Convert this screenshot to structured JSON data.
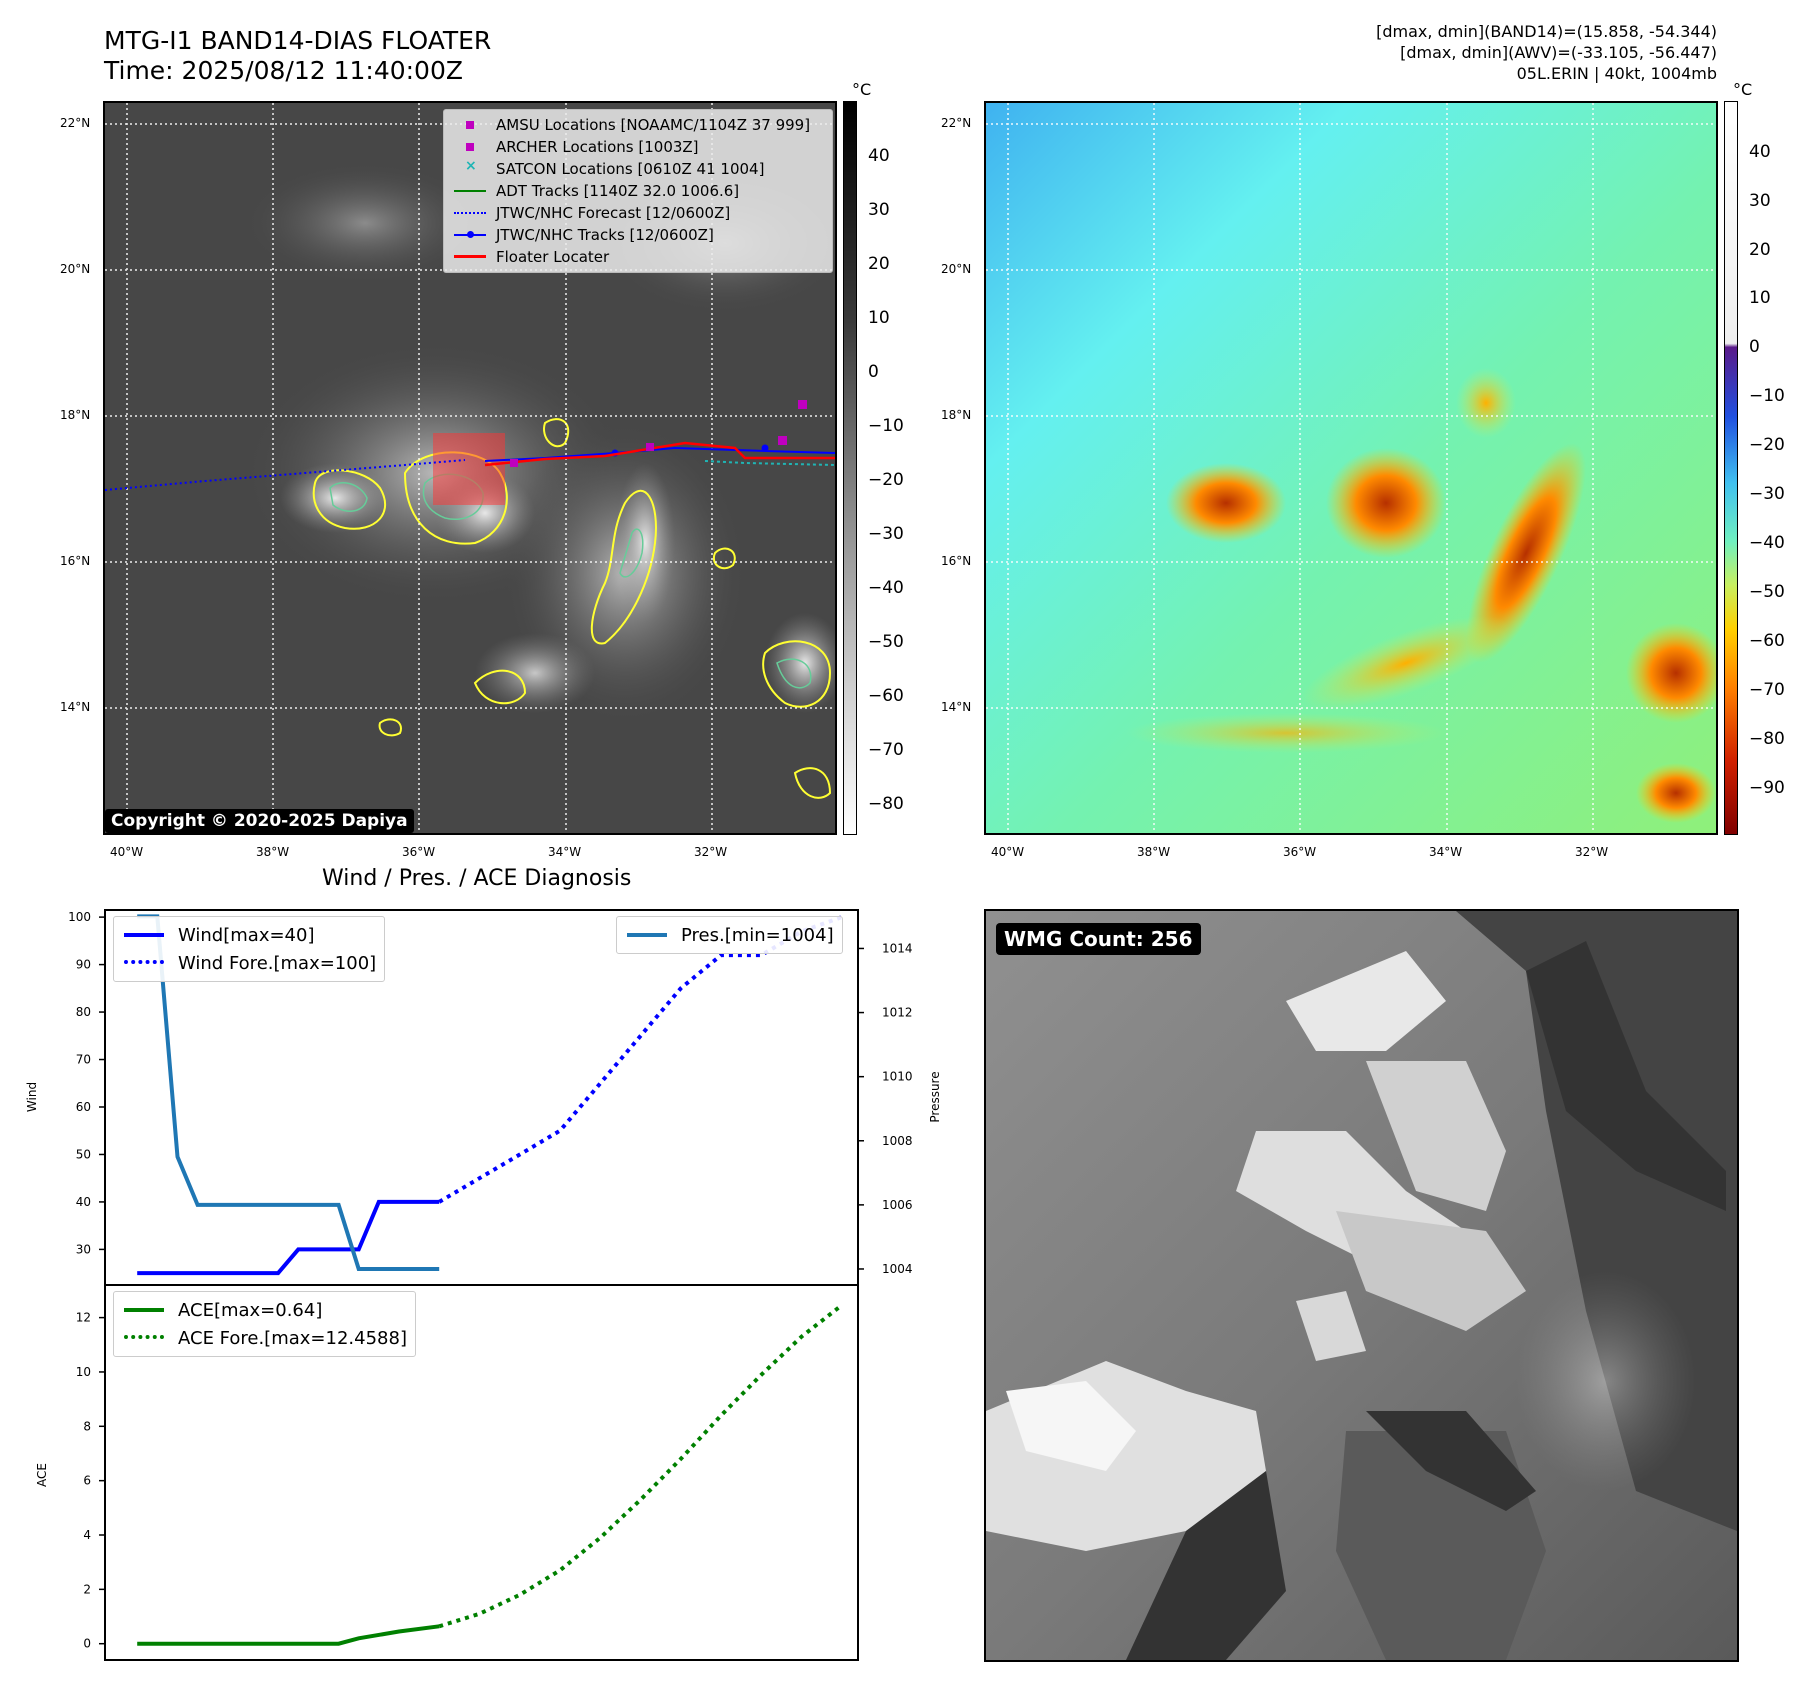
{
  "header": {
    "title_line1": "MTG-I1 BAND14-DIAS FLOATER",
    "title_line2": "Time: 2025/08/12 11:40:00Z",
    "meta_line1": "[dmax, dmin](BAND14)=(15.858, -54.344)",
    "meta_line2": "[dmax, dmin](AWV)=(-33.105, -56.447)",
    "meta_line3": "05L.ERIN | 40kt, 1004mb"
  },
  "map_axes": {
    "lat_ticks": [
      "22°N",
      "20°N",
      "18°N",
      "16°N",
      "14°N"
    ],
    "lon_ticks": [
      "40°W",
      "38°W",
      "36°W",
      "34°W",
      "32°W"
    ]
  },
  "ir_panel": {
    "colorbar_unit": "°C",
    "colorbar_ticks": [
      "40",
      "30",
      "20",
      "10",
      "0",
      "−10",
      "−20",
      "−30",
      "−40",
      "−50",
      "−60",
      "−70",
      "−80"
    ],
    "copyright": "Copyright © 2020-2025 Dapiya",
    "legend": [
      {
        "label": "AMSU Locations [NOAAMC/1104Z 37 999]",
        "color": "#bf00bf"
      },
      {
        "label": "ARCHER Locations [1003Z]",
        "color": "#bf00bf"
      },
      {
        "label": "SATCON Locations [0610Z 41 1004]",
        "color": "#1fb5b5"
      },
      {
        "label": "ADT Tracks [1140Z 32.0 1006.6]",
        "color": "#008000"
      },
      {
        "label": "JTWC/NHC Forecast [12/0600Z]",
        "color": "#0000ff"
      },
      {
        "label": "JTWC/NHC Tracks [12/0600Z]",
        "color": "#0000ff"
      },
      {
        "label": "Floater Locater",
        "color": "#ff0000"
      }
    ]
  },
  "awv_panel": {
    "colorbar_unit": "°C",
    "colorbar_ticks": [
      "40",
      "30",
      "20",
      "10",
      "0",
      "−10",
      "−20",
      "−30",
      "−40",
      "−50",
      "−60",
      "−70",
      "−80",
      "−90"
    ]
  },
  "wmg_panel": {
    "label": "WMG Count: 256"
  },
  "colors": {
    "wind": "#0000ff",
    "pressure": "#1f77b4",
    "ace": "#008000"
  },
  "chart_data": [
    {
      "type": "line",
      "title": "Wind / Pres. / ACE Diagnosis",
      "ylabel": "Wind",
      "y2label": "Pressure",
      "ylim": [
        22.5,
        101.5
      ],
      "y2lim": [
        1003.5,
        1015.2
      ],
      "yticks": [
        30,
        40,
        50,
        60,
        70,
        80,
        90,
        100
      ],
      "y2ticks": [
        1004,
        1006,
        1008,
        1010,
        1012,
        1014
      ],
      "x": [
        0,
        1,
        2,
        3,
        4,
        5,
        6,
        7,
        8,
        9,
        10,
        11,
        12,
        13,
        14,
        15,
        16,
        17,
        18,
        19,
        20,
        21,
        22,
        23,
        24,
        25,
        26,
        27,
        28,
        29,
        30,
        31,
        32,
        33,
        34,
        35,
        36
      ],
      "xlim": [
        -1.6,
        35.8
      ],
      "series": [
        {
          "name": "Wind[max=40]",
          "axis": "left",
          "style": "solid",
          "color": "#0000ff",
          "x": [
            0,
            1,
            2,
            3,
            4,
            5,
            6,
            7,
            8,
            9,
            10,
            11,
            12,
            13,
            14,
            15
          ],
          "values": [
            25,
            25,
            25,
            25,
            25,
            25,
            25,
            25,
            30,
            30,
            30,
            30,
            40,
            40,
            40,
            40
          ]
        },
        {
          "name": "Wind Fore.[max=100]",
          "axis": "left",
          "style": "dotted",
          "color": "#0000ff",
          "x": [
            15,
            17,
            19,
            21,
            23,
            25,
            27,
            29,
            31,
            33,
            35
          ],
          "values": [
            40,
            45,
            50,
            55,
            65,
            75,
            85,
            92,
            92,
            97,
            100
          ]
        },
        {
          "name": "Pres.[min=1004]",
          "axis": "right",
          "style": "solid",
          "color": "#1f77b4",
          "x": [
            0,
            1,
            2,
            3,
            4,
            5,
            6,
            7,
            8,
            9,
            10,
            11,
            12,
            13,
            14,
            15
          ],
          "values": [
            1015,
            1015,
            1007.5,
            1006,
            1006,
            1006,
            1006,
            1006,
            1006,
            1006,
            1006,
            1004,
            1004,
            1004,
            1004,
            1004
          ]
        }
      ],
      "legend": [
        "upper-left",
        "upper-right"
      ]
    },
    {
      "type": "line",
      "ylabel": "ACE",
      "ylim": [
        -0.6,
        13.2
      ],
      "yticks": [
        0,
        2,
        4,
        6,
        8,
        10,
        12
      ],
      "xlim": [
        -1.6,
        35.8
      ],
      "series": [
        {
          "name": "ACE[max=0.64]",
          "style": "solid",
          "color": "#008000",
          "x": [
            0,
            5,
            10,
            11,
            13,
            15
          ],
          "values": [
            0,
            0,
            0,
            0.2,
            0.45,
            0.64
          ]
        },
        {
          "name": "ACE Fore.[max=12.4588]",
          "style": "dotted",
          "color": "#008000",
          "x": [
            15,
            17,
            19,
            21,
            23,
            25,
            27,
            29,
            31,
            33,
            35
          ],
          "values": [
            0.64,
            1.1,
            1.8,
            2.7,
            3.9,
            5.3,
            6.8,
            8.4,
            9.9,
            11.3,
            12.4588
          ]
        }
      ],
      "legend": "upper-left"
    }
  ]
}
